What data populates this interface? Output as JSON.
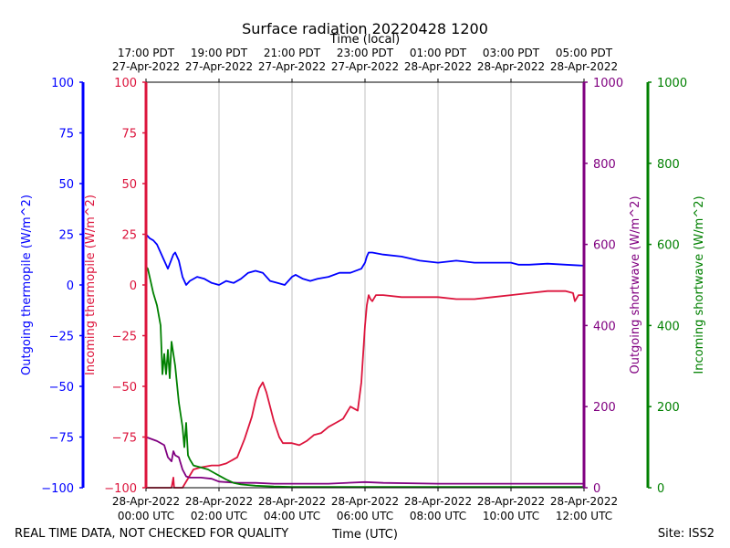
{
  "chart_data": {
    "type": "line",
    "title": "Surface radiation 20220428 1200",
    "top_axis_title": "Time (local)",
    "xlabel": "Time (UTC)",
    "footer_left": "REAL TIME DATA, NOT CHECKED FOR QUALITY",
    "footer_right": "Site: ISS2",
    "xlim": [
      0,
      12
    ],
    "x_ticks_utc": [
      {
        "x": 0,
        "line1": "28-Apr-2022",
        "line2": "00:00 UTC"
      },
      {
        "x": 2,
        "line1": "28-Apr-2022",
        "line2": "02:00 UTC"
      },
      {
        "x": 4,
        "line1": "28-Apr-2022",
        "line2": "04:00 UTC"
      },
      {
        "x": 6,
        "line1": "28-Apr-2022",
        "line2": "06:00 UTC"
      },
      {
        "x": 8,
        "line1": "28-Apr-2022",
        "line2": "08:00 UTC"
      },
      {
        "x": 10,
        "line1": "28-Apr-2022",
        "line2": "10:00 UTC"
      },
      {
        "x": 12,
        "line1": "28-Apr-2022",
        "line2": "12:00 UTC"
      }
    ],
    "x_ticks_local": [
      {
        "x": 0,
        "line1": "17:00 PDT",
        "line2": "27-Apr-2022"
      },
      {
        "x": 2,
        "line1": "19:00 PDT",
        "line2": "27-Apr-2022"
      },
      {
        "x": 4,
        "line1": "21:00 PDT",
        "line2": "27-Apr-2022"
      },
      {
        "x": 6,
        "line1": "23:00 PDT",
        "line2": "27-Apr-2022"
      },
      {
        "x": 8,
        "line1": "01:00 PDT",
        "line2": "28-Apr-2022"
      },
      {
        "x": 10,
        "line1": "03:00 PDT",
        "line2": "28-Apr-2022"
      },
      {
        "x": 12,
        "line1": "05:00 PDT",
        "line2": "28-Apr-2022"
      }
    ],
    "axes": {
      "outgoing_thermopile": {
        "label": "Outgoing thermopile (W/m^2)",
        "color": "#0000ff",
        "ylim": [
          -100,
          100
        ],
        "ticks": [
          "100",
          "75",
          "50",
          "25",
          "0",
          "−25",
          "−50",
          "−75",
          "−100"
        ],
        "tick_values": [
          100,
          75,
          50,
          25,
          0,
          -25,
          -50,
          -75,
          -100
        ]
      },
      "incoming_thermopile": {
        "label": "Incoming thermopile (W/m^2)",
        "color": "#dc143c",
        "ylim": [
          -100,
          100
        ],
        "ticks": [
          "100",
          "75",
          "50",
          "25",
          "0",
          "−25",
          "−50",
          "−75",
          "−100"
        ],
        "tick_values": [
          100,
          75,
          50,
          25,
          0,
          -25,
          -50,
          -75,
          -100
        ]
      },
      "outgoing_shortwave": {
        "label": "Outgoing shortwave (W/m^2)",
        "color": "#800080",
        "ylim": [
          0,
          1000
        ],
        "ticks": [
          "1000",
          "800",
          "600",
          "400",
          "200",
          "0"
        ],
        "tick_values": [
          1000,
          800,
          600,
          400,
          200,
          0
        ]
      },
      "incoming_shortwave": {
        "label": "Incoming shortwave (W/m^2)",
        "color": "#008000",
        "ylim": [
          0,
          1000
        ],
        "ticks": [
          "1000",
          "800",
          "600",
          "400",
          "200",
          "0"
        ],
        "tick_values": [
          1000,
          800,
          600,
          400,
          200,
          0
        ]
      }
    },
    "series": [
      {
        "name": "Outgoing thermopile",
        "axis": "outgoing_thermopile",
        "color": "#0000ff",
        "x": [
          0,
          0.1,
          0.2,
          0.3,
          0.4,
          0.5,
          0.6,
          0.75,
          0.8,
          0.9,
          1.0,
          1.1,
          1.2,
          1.4,
          1.6,
          1.8,
          2.0,
          2.2,
          2.4,
          2.6,
          2.8,
          3.0,
          3.2,
          3.4,
          3.6,
          3.8,
          4.0,
          4.1,
          4.3,
          4.5,
          4.7,
          5.0,
          5.3,
          5.6,
          5.9,
          6.0,
          6.05,
          6.1,
          6.2,
          6.5,
          7.0,
          7.5,
          8.0,
          8.5,
          9.0,
          9.5,
          10.0,
          10.2,
          10.5,
          11.0,
          11.5,
          12.0
        ],
        "y": [
          25,
          23,
          22,
          20,
          16,
          12,
          8,
          15,
          16,
          12,
          4,
          0,
          2,
          4,
          3,
          1,
          0,
          2,
          1,
          3,
          6,
          7,
          6,
          2,
          1,
          0,
          4,
          5,
          3,
          2,
          3,
          4,
          6,
          6,
          8,
          11,
          14,
          16,
          16,
          15,
          14,
          12,
          11,
          12,
          11,
          11,
          11,
          10,
          10,
          10.5,
          10,
          9.5
        ]
      },
      {
        "name": "Incoming thermopile",
        "axis": "incoming_thermopile",
        "color": "#dc143c",
        "x": [
          0,
          0.5,
          0.7,
          0.75,
          0.77,
          0.85,
          1.0,
          1.3,
          1.5,
          1.8,
          2.0,
          2.2,
          2.5,
          2.7,
          2.9,
          3.0,
          3.1,
          3.2,
          3.3,
          3.5,
          3.65,
          3.75,
          3.85,
          4.0,
          4.2,
          4.4,
          4.6,
          4.8,
          5.0,
          5.2,
          5.4,
          5.6,
          5.8,
          5.9,
          6.0,
          6.05,
          6.1,
          6.15,
          6.2,
          6.3,
          6.5,
          7.0,
          7.5,
          8.0,
          8.5,
          9.0,
          9.5,
          10.0,
          10.5,
          11.0,
          11.5,
          11.7,
          11.75,
          11.85,
          12.0
        ],
        "y": [
          -100,
          -100,
          -100,
          -95,
          -100,
          -100,
          -100,
          -91,
          -90,
          -89,
          -89,
          -88,
          -85,
          -76,
          -65,
          -57,
          -51,
          -48,
          -53,
          -67,
          -75,
          -78,
          -78,
          -78,
          -79,
          -77,
          -74,
          -73,
          -70,
          -68,
          -66,
          -60,
          -62,
          -48,
          -20,
          -10,
          -5,
          -7,
          -8,
          -5,
          -5,
          -6,
          -6,
          -6,
          -7,
          -7,
          -6,
          -5,
          -4,
          -3,
          -3,
          -4,
          -8,
          -5,
          -5
        ]
      },
      {
        "name": "Outgoing shortwave",
        "axis": "outgoing_shortwave",
        "color": "#800080",
        "x": [
          0,
          0.3,
          0.5,
          0.6,
          0.7,
          0.75,
          0.8,
          0.9,
          1.0,
          1.1,
          1.2,
          1.5,
          1.8,
          2.0,
          2.5,
          3.0,
          3.5,
          4.0,
          5.0,
          6.0,
          6.5,
          8.0,
          10.0,
          12.0
        ],
        "y": [
          125,
          115,
          105,
          75,
          65,
          90,
          80,
          75,
          45,
          28,
          25,
          25,
          22,
          15,
          12,
          12,
          10,
          10,
          10,
          14,
          12,
          10,
          10,
          10
        ]
      },
      {
        "name": "Incoming shortwave",
        "axis": "incoming_shortwave",
        "color": "#008000",
        "x": [
          0,
          0.05,
          0.1,
          0.2,
          0.3,
          0.4,
          0.45,
          0.5,
          0.55,
          0.6,
          0.65,
          0.7,
          0.75,
          0.8,
          0.9,
          1.0,
          1.05,
          1.1,
          1.15,
          1.2,
          1.3,
          1.5,
          1.7,
          1.9,
          2.0,
          2.2,
          2.4,
          2.6,
          3.0,
          3.5,
          4.0,
          5.0,
          6.0,
          8.0,
          10.0,
          12.0
        ],
        "y": [
          545,
          540,
          520,
          480,
          450,
          400,
          280,
          330,
          280,
          340,
          270,
          360,
          330,
          300,
          210,
          150,
          100,
          160,
          80,
          70,
          55,
          50,
          45,
          35,
          30,
          20,
          12,
          8,
          5,
          3,
          2,
          2,
          2,
          2,
          2,
          2
        ]
      }
    ]
  }
}
